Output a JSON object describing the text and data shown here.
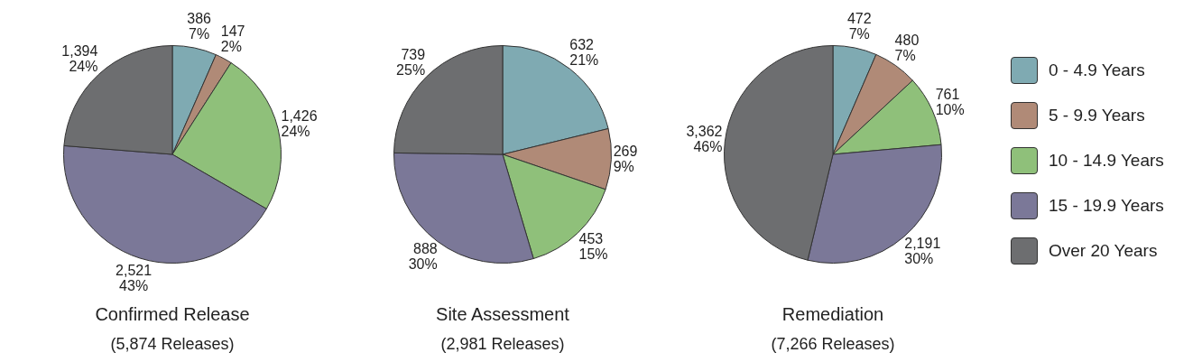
{
  "chart_data": [
    {
      "type": "pie",
      "title": "Confirmed Release",
      "subtitle": "(5,874 Releases)",
      "categories": [
        null,
        null,
        null,
        null,
        null
      ],
      "values": [
        386,
        147,
        1426,
        2521,
        1394
      ],
      "value_labels": [
        "386\n7%",
        "147\n2%",
        "1,426\n24%",
        "2,521\n43%",
        "1,394\n24%"
      ],
      "colors": [
        "#7faab2",
        "#b08a77",
        "#8fc07a",
        "#7b7898",
        "#6d6e70"
      ],
      "legend": false
    },
    {
      "type": "pie",
      "title": "Site Assessment",
      "subtitle": "(2,981 Releases)",
      "categories": [
        null,
        null,
        null,
        null,
        null
      ],
      "values": [
        632,
        269,
        453,
        888,
        739
      ],
      "value_labels": [
        "632\n21%",
        "269\n9%",
        "453\n15%",
        "888\n30%",
        "739\n25%"
      ],
      "colors": [
        "#7faab2",
        "#b08a77",
        "#8fc07a",
        "#7b7898",
        "#6d6e70"
      ],
      "legend": false
    },
    {
      "type": "pie",
      "title": "Remediation",
      "subtitle": "(7,266 Releases)",
      "categories": [
        "0 - 4.9 Years",
        "5 - 9.9 Years",
        "10 - 14.9 Years",
        "15 - 19.9 Years",
        "Over 20 Years"
      ],
      "values": [
        472,
        480,
        761,
        2191,
        3362
      ],
      "value_labels": [
        "472\n7%",
        "480\n7%",
        "761\n10%",
        "2,191\n30%",
        "3,362\n46%"
      ],
      "colors": [
        "#7faab2",
        "#b08a77",
        "#8fc07a",
        "#7b7898",
        "#6d6e70"
      ],
      "legend": "right"
    }
  ]
}
